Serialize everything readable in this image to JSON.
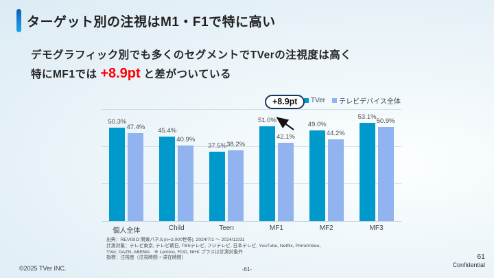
{
  "slide": {
    "title": "ターゲット別の注視はM1・F1で特に高い",
    "subtitle": {
      "line1": "デモグラフィック別でも多くのセグメントでTVerの注視度は高く",
      "line2_prefix": "特にMF1では ",
      "highlight": "+8.9pt",
      "line2_suffix": " と差がついている"
    }
  },
  "chart_data": {
    "type": "bar",
    "title": "",
    "categories": [
      "個人全体",
      "Child",
      "Teen",
      "MF1",
      "MF2",
      "MF3"
    ],
    "series": [
      {
        "name": "TVer",
        "color": "#0099CC",
        "values": [
          50.3,
          45.4,
          37.5,
          51.0,
          49.0,
          53.1
        ]
      },
      {
        "name": "テレビデバイス全体",
        "color": "#91B3F0",
        "values": [
          47.4,
          40.9,
          38.2,
          42.1,
          44.2,
          50.9
        ]
      }
    ],
    "value_suffix": "%",
    "ylim": [
      0,
      60
    ],
    "gridlines": [
      20,
      40,
      60
    ],
    "grid": true,
    "legend_position": "top-right",
    "xlabel": "",
    "ylabel": "",
    "annotation": {
      "label": "+8.9pt",
      "target_category": "MF1"
    }
  },
  "footnote": {
    "line1": "出典：REVISIO 関東パネル(n=2,000世帯), 2024/7/1 ～ 2024/12/31",
    "line2": "計測対象：テレビ東京, テレビ朝日, TBSテレビ, フジテレビ, 日本テレビ, YouTube, Netflix, PrimeVideo,",
    "line3": "TVer, DAZN, ABEMA　※ Lemino, FOD, NHK プラスは計測対象外",
    "line4": "指標：注視度（注視時間 ÷ 滞在時間）"
  },
  "footer": {
    "copyright": "©2025 TVer INC.",
    "page_center": "-61-",
    "page_number": "61",
    "confidential": "Confidential"
  },
  "colors": {
    "accent_bar_top": "#0d5fb4",
    "accent_bar_bottom": "#18a7e6",
    "highlight_red": "#ff0000",
    "tver_bar": "#0099CC",
    "device_bar": "#91B3F0"
  }
}
